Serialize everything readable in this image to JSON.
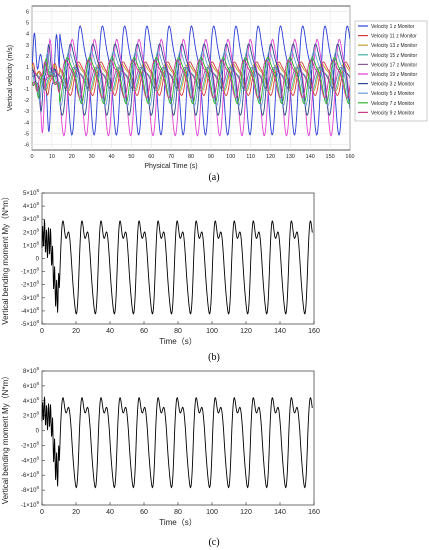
{
  "chart_data": [
    {
      "type": "line",
      "xlabel": "Physical Time (s)",
      "ylabel": "Vertical velocity (m/s)",
      "xlim": [
        0,
        160
      ],
      "ylim": [
        -6.5,
        6.5
      ],
      "x_ticks": [
        "0",
        "10",
        "20",
        "30",
        "40",
        "50",
        "60",
        "70",
        "80",
        "90",
        "100",
        "110",
        "120",
        "130",
        "140",
        "150",
        "160"
      ],
      "y_ticks": [
        "-6",
        "-5",
        "-4",
        "-3",
        "-2",
        "-1",
        "0",
        "1",
        "2",
        "3",
        "4",
        "5",
        "6"
      ],
      "grid": true,
      "legend_position": "right",
      "series": [
        {
          "name": "Velocity 1 z Monitor",
          "color": "#2b3fd6",
          "amplitude": 5.2,
          "offset": 0.3
        },
        {
          "name": "Velocity 11 z Monitor",
          "color": "#d43c3c",
          "amplitude": 1.6,
          "offset": 0.1
        },
        {
          "name": "Velocity 13 z Monitor",
          "color": "#c0a030",
          "amplitude": 1.3,
          "offset": 0.2
        },
        {
          "name": "Velocity 15 z Monitor",
          "color": "#40b0a0",
          "amplitude": 1.1,
          "offset": 0.0
        },
        {
          "name": "Velocity 17 z Monitor",
          "color": "#8a5a9a",
          "amplitude": 1.0,
          "offset": 0.1
        },
        {
          "name": "Velocity 19 z Monitor",
          "color": "#e040d0",
          "amplitude": 4.6,
          "offset": -0.4
        },
        {
          "name": "Velocity 3 z Monitor",
          "color": "#2c4a8a",
          "amplitude": 3.4,
          "offset": 0.2
        },
        {
          "name": "Velocity 5 z Monitor",
          "color": "#6aa0d8",
          "amplitude": 2.6,
          "offset": 0.2
        },
        {
          "name": "Velocity 7 z Monitor",
          "color": "#2fb42f",
          "amplitude": 2.2,
          "offset": 0.0
        },
        {
          "name": "Velocity 9 z Monitor",
          "color": "#c83c8c",
          "amplitude": 1.8,
          "offset": 0.1
        }
      ],
      "period": 11.2,
      "caption": "(a)"
    },
    {
      "type": "line",
      "xlabel": "Time（s）",
      "ylabel": "Vertical bending moment My（N*m）",
      "xlim": [
        0,
        160
      ],
      "ylim": [
        -500000000.0,
        500000000.0
      ],
      "x_ticks": [
        "0",
        "20",
        "40",
        "60",
        "80",
        "100",
        "120",
        "140",
        "160"
      ],
      "y_ticks": [
        {
          "mant": "-5×10",
          "exp": "8"
        },
        {
          "mant": "-4×10",
          "exp": "8"
        },
        {
          "mant": "-3×10",
          "exp": "8"
        },
        {
          "mant": "-2×10",
          "exp": "8"
        },
        {
          "mant": "-1×10",
          "exp": "8"
        },
        {
          "mant": "0",
          "exp": ""
        },
        {
          "mant": "1×10",
          "exp": "8"
        },
        {
          "mant": "2×10",
          "exp": "8"
        },
        {
          "mant": "3×10",
          "exp": "8"
        },
        {
          "mant": "4×10",
          "exp": "8"
        },
        {
          "mant": "5×10",
          "exp": "8"
        }
      ],
      "series": [
        {
          "color": "#000000",
          "peak": 390000000.0,
          "trough": -430000000.0
        }
      ],
      "period": 11.2,
      "caption": "(b)"
    },
    {
      "type": "line",
      "xlabel": "Time（s）",
      "ylabel": "Vertical bending moment My（N*m）",
      "xlim": [
        0,
        160
      ],
      "ylim": [
        -1000000000.0,
        800000000.0
      ],
      "x_ticks": [
        "0",
        "20",
        "40",
        "60",
        "80",
        "100",
        "120",
        "140",
        "160"
      ],
      "y_ticks": [
        {
          "mant": "-1×10",
          "exp": "9"
        },
        {
          "mant": "-8×10",
          "exp": "8"
        },
        {
          "mant": "-6×10",
          "exp": "8"
        },
        {
          "mant": "-4×10",
          "exp": "8"
        },
        {
          "mant": "-2×10",
          "exp": "8"
        },
        {
          "mant": "0",
          "exp": ""
        },
        {
          "mant": "2×10",
          "exp": "8"
        },
        {
          "mant": "4×10",
          "exp": "8"
        },
        {
          "mant": "6×10",
          "exp": "8"
        },
        {
          "mant": "8×10",
          "exp": "8"
        }
      ],
      "series": [
        {
          "color": "#000000",
          "peak": 600000000.0,
          "trough": -780000000.0
        }
      ],
      "period": 11.2,
      "caption": "(c)"
    }
  ]
}
